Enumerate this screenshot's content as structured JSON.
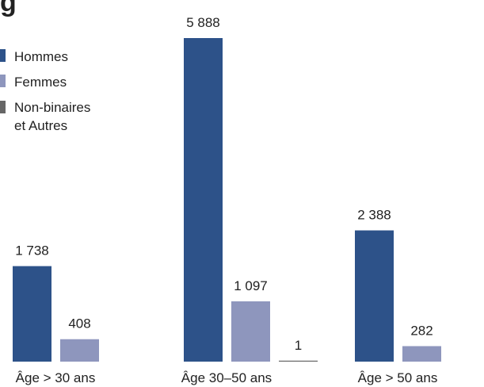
{
  "chart_data": {
    "type": "bar",
    "title_fragment": "g",
    "categories": [
      "Âge > 30 ans",
      "Âge 30–50 ans",
      "Âge > 50 ans"
    ],
    "series": [
      {
        "name": "Hommes",
        "color": "#2d5289",
        "values": [
          1738,
          5888,
          2388
        ]
      },
      {
        "name": "Femmes",
        "color": "#8e96bd",
        "values": [
          408,
          1097,
          282
        ]
      },
      {
        "name": "Non-binaires\net Autres",
        "color": "#666666",
        "values": [
          0,
          1,
          0
        ]
      }
    ],
    "value_labels": [
      [
        "1 738",
        "5 888",
        "2 388"
      ],
      [
        "408",
        "1 097",
        "282"
      ],
      [
        "",
        "1",
        ""
      ]
    ],
    "ylim": [
      0,
      5888
    ],
    "legend_position": "top-left",
    "grid": false
  }
}
